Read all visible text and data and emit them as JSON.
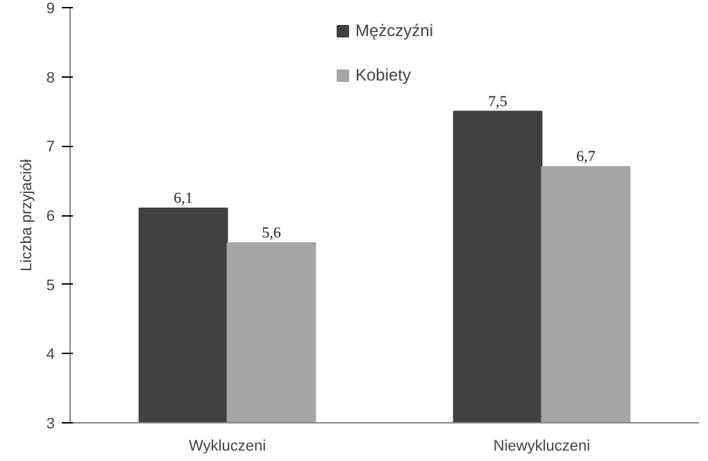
{
  "chart_data": {
    "type": "bar",
    "ylabel": "Liczba przyjaciół",
    "categories": [
      "Wykluczeni",
      "Niewykluczeni"
    ],
    "series": [
      {
        "name": "Mężczyźni",
        "color": "#404040",
        "values": [
          6.1,
          7.5
        ],
        "value_labels": [
          "6,1",
          "7,5"
        ]
      },
      {
        "name": "Kobiety",
        "color": "#a6a6a6",
        "values": [
          5.6,
          6.7
        ],
        "value_labels": [
          "5,6",
          "6,7"
        ]
      }
    ],
    "ylim": [
      3,
      9
    ],
    "yticks": [
      3,
      4,
      5,
      6,
      7,
      8,
      9
    ],
    "grid": false,
    "legend": "top"
  }
}
